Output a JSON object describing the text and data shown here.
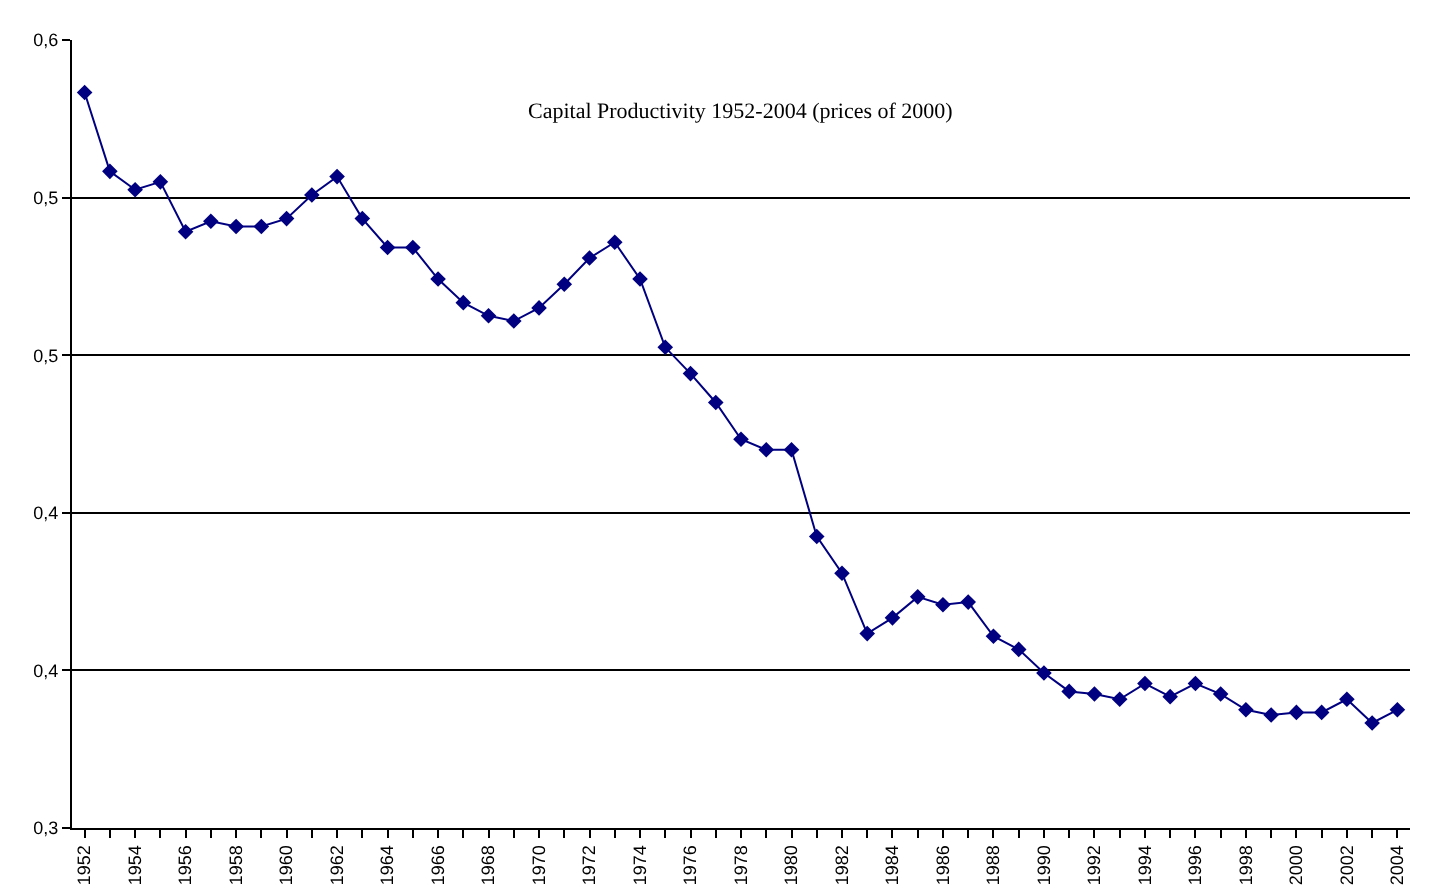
{
  "chart_data": {
    "type": "line",
    "title": "Capital Productivity 1952-2004 (prices of 2000)",
    "x": [
      1952,
      1953,
      1954,
      1955,
      1956,
      1957,
      1958,
      1959,
      1960,
      1961,
      1962,
      1963,
      1964,
      1965,
      1966,
      1967,
      1968,
      1969,
      1970,
      1971,
      1972,
      1973,
      1974,
      1975,
      1976,
      1977,
      1978,
      1979,
      1980,
      1981,
      1982,
      1983,
      1984,
      1985,
      1986,
      1987,
      1988,
      1989,
      1990,
      1991,
      1992,
      1993,
      1994,
      1995,
      1996,
      1997,
      1998,
      1999,
      2000,
      2001,
      2002,
      2003,
      2004
    ],
    "series": [
      {
        "color": "#000080",
        "values": [
          0.58,
          0.55,
          0.543,
          0.546,
          0.527,
          0.531,
          0.529,
          0.529,
          0.532,
          0.541,
          0.548,
          0.532,
          0.521,
          0.521,
          0.509,
          0.5,
          0.495,
          0.493,
          0.498,
          0.507,
          0.517,
          0.523,
          0.509,
          0.483,
          0.473,
          0.462,
          0.448,
          0.444,
          0.444,
          0.411,
          0.397,
          0.374,
          0.38,
          0.388,
          0.385,
          0.386,
          0.373,
          0.368,
          0.359,
          0.352,
          0.351,
          0.349,
          0.355,
          0.35,
          0.355,
          0.351,
          0.345,
          0.343,
          0.344,
          0.344,
          0.349,
          0.34,
          0.345
        ]
      }
    ],
    "xlim": [
      1951.5,
      2004.5
    ],
    "xticks": [
      1952,
      {
        "value": 1953,
        "label": null
      },
      1954,
      {
        "value": 1955,
        "label": null
      },
      1956,
      {
        "value": 1957,
        "label": null
      },
      1958,
      {
        "value": 1959,
        "label": null
      },
      1960,
      {
        "value": 1961,
        "label": null
      },
      1962,
      {
        "value": 1963,
        "label": null
      },
      1964,
      {
        "value": 1965,
        "label": null
      },
      1966,
      {
        "value": 1967,
        "label": null
      },
      1968,
      {
        "value": 1969,
        "label": null
      },
      1970,
      {
        "value": 1971,
        "label": null
      },
      1972,
      {
        "value": 1973,
        "label": null
      },
      1974,
      {
        "value": 1975,
        "label": null
      },
      1976,
      {
        "value": 1977,
        "label": null
      },
      1978,
      {
        "value": 1979,
        "label": null
      },
      1980,
      {
        "value": 1981,
        "label": null
      },
      1982,
      {
        "value": 1983,
        "label": null
      },
      1984,
      {
        "value": 1985,
        "label": null
      },
      1986,
      {
        "value": 1987,
        "label": null
      },
      1988,
      {
        "value": 1989,
        "label": null
      },
      1990,
      {
        "value": 1991,
        "label": null
      },
      1992,
      {
        "value": 1993,
        "label": null
      },
      1994,
      {
        "value": 1995,
        "label": null
      },
      1996,
      {
        "value": 1997,
        "label": null
      },
      1998,
      {
        "value": 1999,
        "label": null
      },
      2000,
      {
        "value": 2001,
        "label": null
      },
      2002,
      {
        "value": 2003,
        "label": null
      },
      2004
    ],
    "ylim": [
      0.3,
      0.6
    ],
    "yticks": [
      {
        "value": 0.3,
        "label": "0,3"
      },
      {
        "value": 0.36,
        "label": "0,4"
      },
      {
        "value": 0.42,
        "label": "0,4"
      },
      {
        "value": 0.48,
        "label": "0,5"
      },
      {
        "value": 0.54,
        "label": "0,5"
      },
      {
        "value": 0.6,
        "label": "0,6"
      }
    ],
    "grid": "y",
    "marker": "diamond",
    "line_style": "solid"
  }
}
